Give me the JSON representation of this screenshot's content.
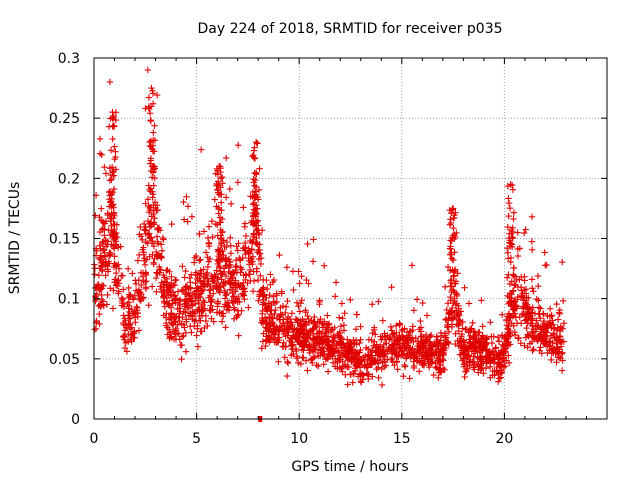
{
  "chart_data": {
    "type": "scatter",
    "title": "Day 224 of 2018, SRMTID for receiver p035",
    "xlabel": "GPS time / hours",
    "ylabel": "SRMTID / TECUs",
    "xlim": [
      0,
      25
    ],
    "ylim": [
      0,
      0.3
    ],
    "xticks": [
      0,
      5,
      10,
      15,
      20
    ],
    "xtick_labels": [
      "0",
      "5",
      "10",
      "15",
      "20"
    ],
    "yticks": [
      0,
      0.05,
      0.1,
      0.15,
      0.2,
      0.25,
      0.3
    ],
    "ytick_labels": [
      "0",
      "0.05",
      "0.1",
      "0.15",
      "0.2",
      "0.25",
      "0.3"
    ],
    "grid": true,
    "marker": "plus",
    "color": "#e00000",
    "data_x_range": [
      0,
      22.9
    ],
    "highlighted_marker_x": 8.1,
    "trend": [
      [
        0.0,
        0.11
      ],
      [
        0.5,
        0.13
      ],
      [
        0.9,
        0.16
      ],
      [
        1.2,
        0.11
      ],
      [
        1.6,
        0.08
      ],
      [
        2.0,
        0.09
      ],
      [
        2.5,
        0.14
      ],
      [
        2.9,
        0.17
      ],
      [
        3.4,
        0.11
      ],
      [
        4.0,
        0.085
      ],
      [
        4.5,
        0.09
      ],
      [
        5.0,
        0.1
      ],
      [
        5.5,
        0.11
      ],
      [
        6.1,
        0.12
      ],
      [
        6.8,
        0.11
      ],
      [
        7.3,
        0.12
      ],
      [
        7.9,
        0.15
      ],
      [
        8.3,
        0.09
      ],
      [
        9.0,
        0.075
      ],
      [
        10.0,
        0.07
      ],
      [
        11.0,
        0.065
      ],
      [
        12.0,
        0.06
      ],
      [
        13.0,
        0.045
      ],
      [
        14.0,
        0.055
      ],
      [
        15.0,
        0.065
      ],
      [
        16.0,
        0.055
      ],
      [
        17.0,
        0.055
      ],
      [
        17.5,
        0.1
      ],
      [
        18.0,
        0.06
      ],
      [
        19.0,
        0.055
      ],
      [
        19.8,
        0.045
      ],
      [
        20.4,
        0.09
      ],
      [
        21.0,
        0.09
      ],
      [
        21.5,
        0.075
      ],
      [
        22.0,
        0.07
      ],
      [
        22.9,
        0.065
      ]
    ],
    "peaks": [
      [
        0.9,
        0.255
      ],
      [
        2.8,
        0.275
      ],
      [
        6.1,
        0.21
      ],
      [
        7.9,
        0.23
      ],
      [
        17.5,
        0.175
      ],
      [
        20.3,
        0.195
      ]
    ]
  }
}
